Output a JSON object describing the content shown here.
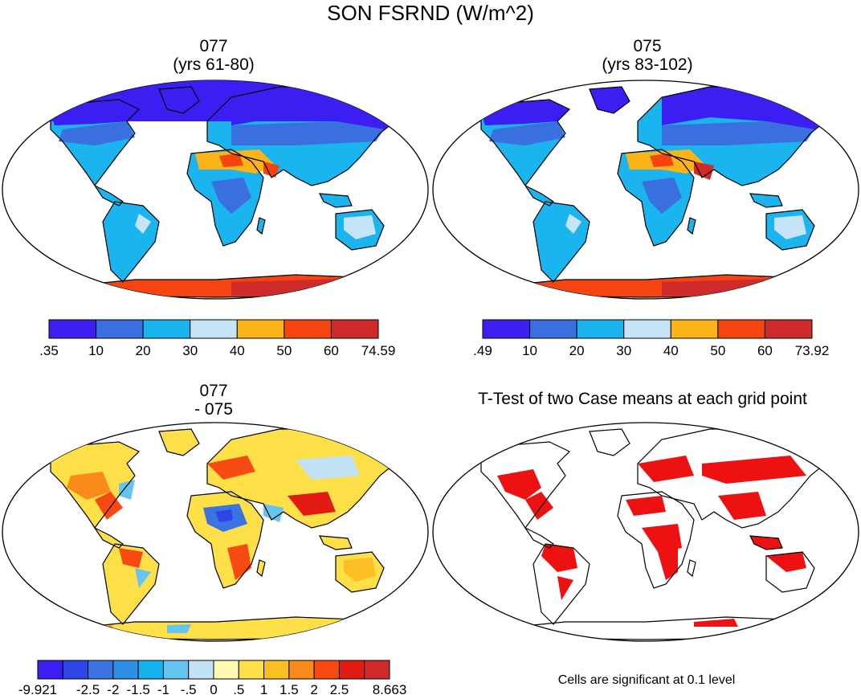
{
  "figure": {
    "title": "SON FSRND (W/m^2)"
  },
  "panels": {
    "top_left": {
      "title_line1": "077",
      "title_line2": "(yrs 61-80)",
      "colorbar": {
        "colors": [
          "#3b1ff2",
          "#3a6fe0",
          "#1ab4ee",
          "#c6e4f7",
          "#fbb417",
          "#f5440f",
          "#d02b2b"
        ],
        "labels": [
          ".35",
          "10",
          "20",
          "30",
          "40",
          "50",
          "60",
          "74.59"
        ]
      }
    },
    "top_right": {
      "title_line1": "075",
      "title_line2": "(yrs 83-102)",
      "colorbar": {
        "colors": [
          "#3b1ff2",
          "#3a6fe0",
          "#1ab4ee",
          "#c6e4f7",
          "#fbb417",
          "#f5440f",
          "#d02b2b"
        ],
        "labels": [
          ".49",
          "10",
          "20",
          "30",
          "40",
          "50",
          "60",
          "73.92"
        ]
      }
    },
    "bottom_left": {
      "title_line1": "077",
      "title_line2": "- 075",
      "colorbar": {
        "colors": [
          "#3b1ff2",
          "#2b45e8",
          "#3b73e2",
          "#2d8fe6",
          "#16b2ee",
          "#66c4f0",
          "#c2e2f5",
          "#fff9b4",
          "#fde047",
          "#fbbf24",
          "#fa8a1b",
          "#f64a12",
          "#e21b12",
          "#d02b2b"
        ],
        "labels": [
          "-9.921",
          "-2.5",
          "-2",
          "-1.5",
          "-1",
          "-.5",
          "0",
          ".5",
          "1",
          "1.5",
          "2",
          "2.5",
          "8.663"
        ]
      }
    },
    "bottom_right": {
      "title": "T-Test of two Case means at each grid point",
      "footnote": "Cells are significant at 0.1 level",
      "significant_color": "#ee1111"
    }
  }
}
